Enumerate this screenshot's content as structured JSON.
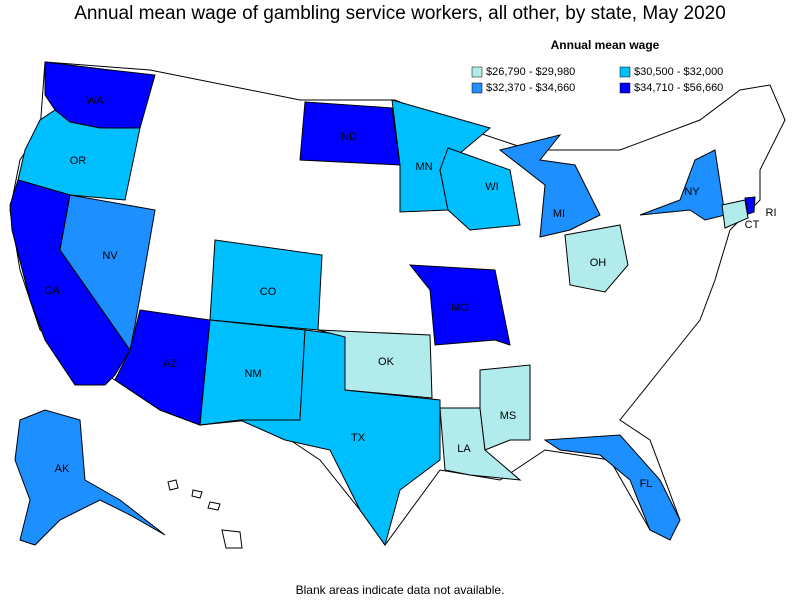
{
  "title": "Annual mean wage of gambling service workers, all other, by state, May 2020",
  "legend": {
    "title": "Annual mean wage",
    "items": [
      {
        "label": "$26,790 - $29,980",
        "color": "#b2ebeb"
      },
      {
        "label": "$30,500 - $32,000",
        "color": "#00bfff"
      },
      {
        "label": "$32,370 - $34,660",
        "color": "#1e8fff"
      },
      {
        "label": "$34,710 - $56,660",
        "color": "#0000ff"
      }
    ]
  },
  "states": [
    {
      "label": "WA",
      "color": "#0000ff"
    },
    {
      "label": "OR",
      "color": "#00bfff"
    },
    {
      "label": "CA",
      "color": "#0000ff"
    },
    {
      "label": "NV",
      "color": "#1e8fff"
    },
    {
      "label": "AZ",
      "color": "#0000ff"
    },
    {
      "label": "CO",
      "color": "#00bfff"
    },
    {
      "label": "NM",
      "color": "#00bfff"
    },
    {
      "label": "TX",
      "color": "#00bfff"
    },
    {
      "label": "OK",
      "color": "#b2ebeb"
    },
    {
      "label": "ND",
      "color": "#0000ff"
    },
    {
      "label": "MN",
      "color": "#00bfff"
    },
    {
      "label": "WI",
      "color": "#00bfff"
    },
    {
      "label": "MI",
      "color": "#1e8fff"
    },
    {
      "label": "MO",
      "color": "#0000ff"
    },
    {
      "label": "OH",
      "color": "#b2ebeb"
    },
    {
      "label": "NY",
      "color": "#1e8fff"
    },
    {
      "label": "CT",
      "color": "#b2ebeb"
    },
    {
      "label": "RI",
      "color": "#0000ff"
    },
    {
      "label": "LA",
      "color": "#b2ebeb"
    },
    {
      "label": "MS",
      "color": "#b2ebeb"
    },
    {
      "label": "FL",
      "color": "#1e8fff"
    },
    {
      "label": "AK",
      "color": "#1e8fff"
    }
  ],
  "note": "Blank areas indicate data not available."
}
